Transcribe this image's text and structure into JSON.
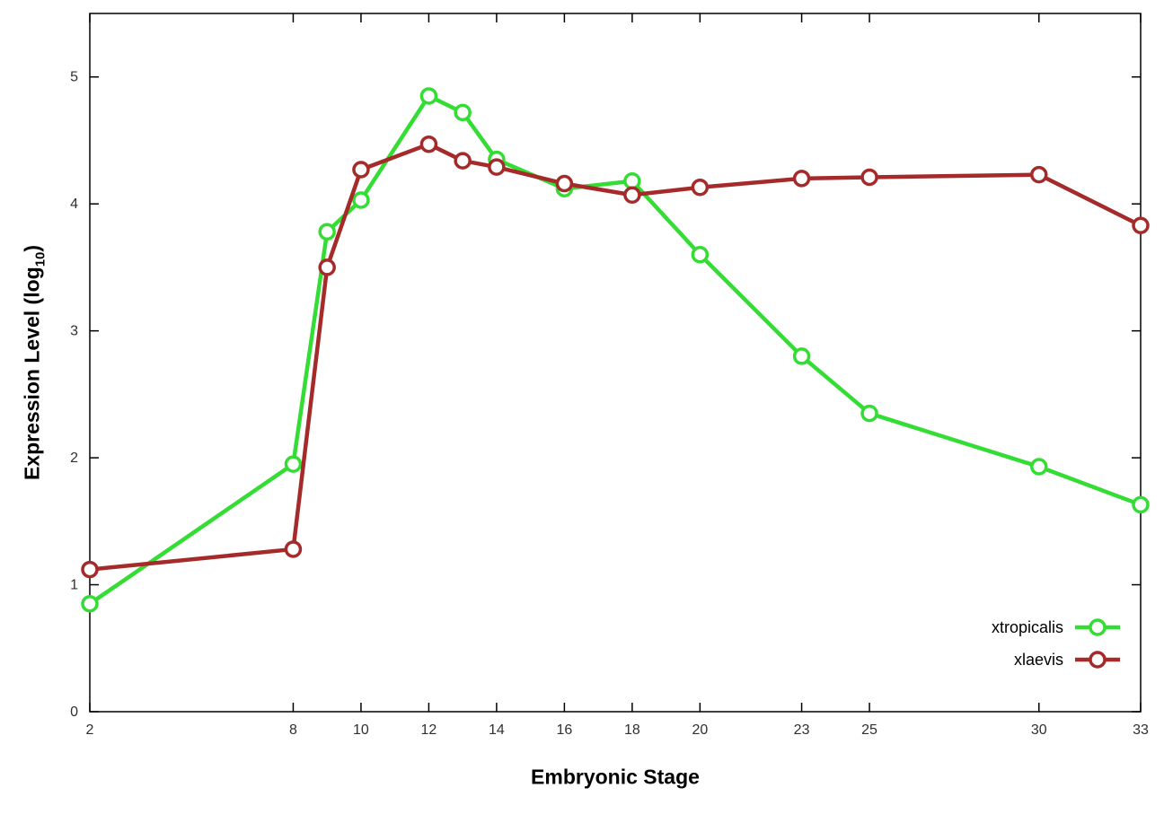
{
  "figure": {
    "xlabel": "Embryonic Stage",
    "ylabel_prefix": "Expression Level (log",
    "ylabel_sub": "10",
    "ylabel_suffix": ")"
  },
  "chart_data": {
    "type": "line",
    "title": "",
    "xlabel": "Embryonic Stage",
    "ylabel": "Expression Level (log10)",
    "x": [
      2,
      8,
      9,
      10,
      12,
      13,
      14,
      16,
      18,
      20,
      23,
      25,
      30,
      33
    ],
    "series": [
      {
        "name": "xtropicalis",
        "color": "#33dd33",
        "marker": "open-circle",
        "values": [
          0.85,
          1.95,
          3.78,
          4.03,
          4.85,
          4.72,
          4.35,
          4.12,
          4.18,
          3.6,
          2.8,
          2.35,
          1.93,
          1.63
        ]
      },
      {
        "name": "xlaevis",
        "color": "#a52a2a",
        "marker": "open-circle",
        "values": [
          1.12,
          1.28,
          3.5,
          4.27,
          4.47,
          4.34,
          4.29,
          4.16,
          4.07,
          4.13,
          4.2,
          4.21,
          4.23,
          3.83
        ]
      }
    ],
    "xlim": [
      2,
      33
    ],
    "ylim": [
      0,
      5.5
    ],
    "xticks": [
      2,
      8,
      10,
      12,
      14,
      16,
      18,
      20,
      23,
      25,
      30,
      33
    ],
    "yticks": [
      0,
      1,
      2,
      3,
      4,
      5
    ],
    "grid": false,
    "legend_position": "bottom-right",
    "axis_color": "#000000",
    "tick_label_color": "#303030"
  }
}
